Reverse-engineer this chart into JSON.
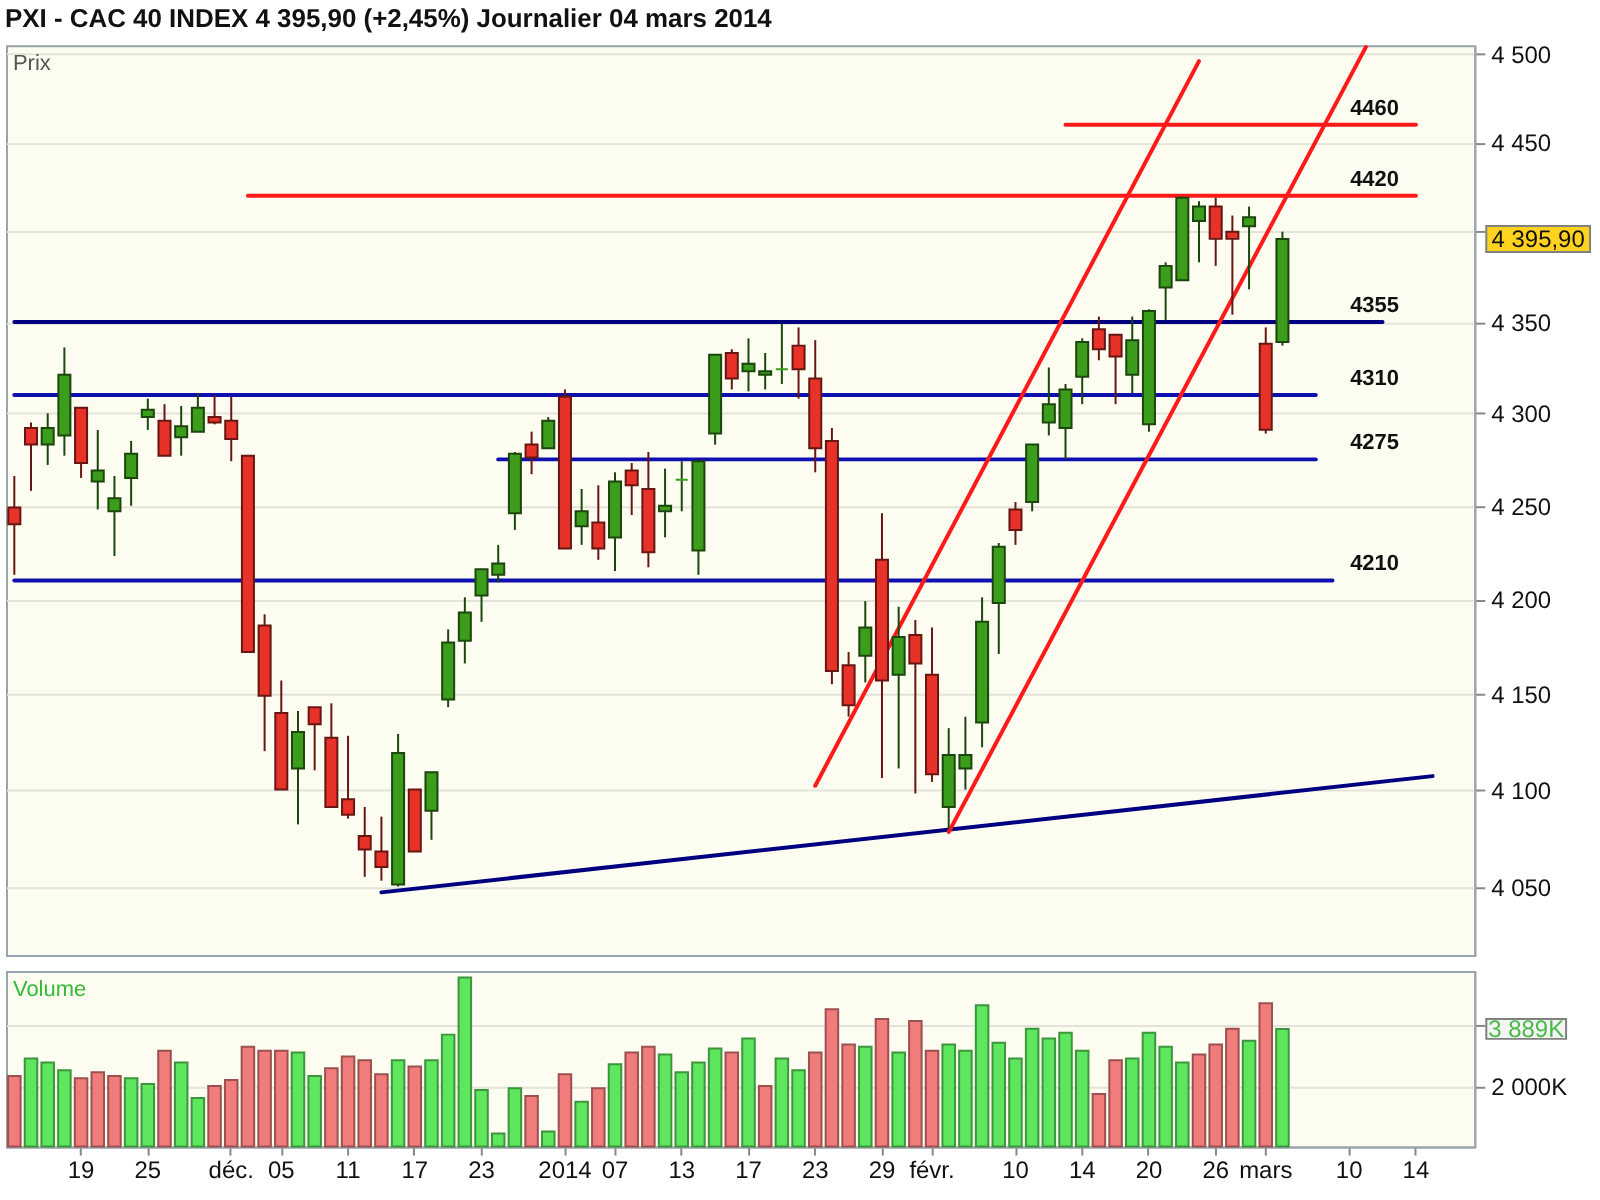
{
  "chart_data": [
    {
      "type": "candlestick",
      "title": "PXI - CAC 40 INDEX 4 395,90 (+2,45%) Journalier 04 mars 2014",
      "ylabel": "Prix",
      "categories": [
        null,
        null,
        null,
        null,
        null,
        null,
        null,
        null,
        null,
        null,
        null,
        null,
        null,
        null,
        null,
        null,
        null,
        null,
        null,
        null,
        null,
        null,
        null,
        null,
        null,
        null,
        null,
        null,
        null,
        null,
        null,
        null,
        null,
        null,
        null,
        null,
        null,
        null,
        null,
        null,
        null,
        null,
        null,
        null,
        null,
        null,
        null,
        null,
        null,
        null,
        null,
        null,
        null,
        null,
        null,
        null,
        null,
        null,
        null,
        null,
        null,
        null,
        null,
        null,
        null,
        null,
        null,
        null,
        null,
        null,
        null,
        null,
        null,
        null,
        null,
        null,
        null,
        null,
        null,
        null,
        null,
        null,
        null,
        null,
        null,
        null,
        null,
        null
      ],
      "ohlc": [
        [
          4249,
          4266,
          4213,
          4240
        ],
        [
          4292,
          4295,
          4258,
          4283
        ],
        [
          4283,
          4300,
          4272,
          4292
        ],
        [
          4288,
          4336,
          4277,
          4321
        ],
        [
          4303,
          4303,
          4265,
          4273
        ],
        [
          4263,
          4291,
          4248,
          4269
        ],
        [
          4247,
          4266,
          4223,
          4254
        ],
        [
          4265,
          4285,
          4250,
          4278
        ],
        [
          4298,
          4308,
          4291,
          4302
        ],
        [
          4296,
          4305,
          4277,
          4277
        ],
        [
          4287,
          4304,
          4277,
          4293
        ],
        [
          4290,
          4311,
          4290,
          4303
        ],
        [
          4298,
          4310,
          4294,
          4295
        ],
        [
          4296,
          4309,
          4274,
          4286
        ],
        [
          4277,
          4277,
          4172,
          4172
        ],
        [
          4186,
          4192,
          4120,
          4149
        ],
        [
          4140,
          4157,
          4100,
          4100
        ],
        [
          4111,
          4141,
          4082,
          4130
        ],
        [
          4143,
          4143,
          4110,
          4134
        ],
        [
          4127,
          4145,
          4091,
          4091
        ],
        [
          4095,
          4128,
          4085,
          4087
        ],
        [
          4076,
          4091,
          4055,
          4069
        ],
        [
          4068,
          4086,
          4053,
          4060
        ],
        [
          4051,
          4129,
          4050,
          4119
        ],
        [
          4100,
          4100,
          4068,
          4068
        ],
        [
          4089,
          4109,
          4074,
          4109
        ],
        [
          4147,
          4184,
          4143,
          4177
        ],
        [
          4178,
          4201,
          4166,
          4193
        ],
        [
          4202,
          4216,
          4188,
          4216
        ],
        [
          4213,
          4229,
          4209,
          4219
        ],
        [
          4246,
          4279,
          4237,
          4278
        ],
        [
          4283,
          4290,
          4267,
          4276
        ],
        [
          4281,
          4298,
          4281,
          4296
        ],
        [
          4309,
          4313,
          4227,
          4227
        ],
        [
          4239,
          4259,
          4229,
          4247
        ],
        [
          4241,
          4261,
          4221,
          4227
        ],
        [
          4233,
          4268,
          4215,
          4263
        ],
        [
          4269,
          4273,
          4245,
          4261
        ],
        [
          4259,
          4279,
          4217,
          4225
        ],
        [
          4247,
          4270,
          4233,
          4250
        ],
        [
          4264,
          4274,
          4247,
          4264
        ],
        [
          4226,
          4274,
          4213,
          4274
        ],
        [
          4289,
          4332,
          4283,
          4332
        ],
        [
          4333,
          4335,
          4313,
          4319
        ],
        [
          4323,
          4341,
          4312,
          4327
        ],
        [
          4321,
          4333,
          4313,
          4323
        ],
        [
          4324,
          4349,
          4316,
          4324
        ],
        [
          4337,
          4347,
          4308,
          4324
        ],
        [
          4319,
          4340,
          4268,
          4281
        ],
        [
          4285,
          4292,
          4155,
          4162
        ],
        [
          4165,
          4172,
          4138,
          4144
        ],
        [
          4170,
          4199,
          4156,
          4185
        ],
        [
          4221,
          4246,
          4106,
          4157
        ],
        [
          4160,
          4196,
          4111,
          4180
        ],
        [
          4181,
          4189,
          4098,
          4166
        ],
        [
          4160,
          4185,
          4104,
          4108
        ],
        [
          4091,
          4132,
          4080,
          4118
        ],
        [
          4111,
          4138,
          4100,
          4118
        ],
        [
          4135,
          4201,
          4122,
          4188
        ],
        [
          4198,
          4230,
          4171,
          4228
        ],
        [
          4248,
          4252,
          4229,
          4237
        ],
        [
          4252,
          4283,
          4247,
          4283
        ],
        [
          4295,
          4325,
          4288,
          4305
        ],
        [
          4292,
          4316,
          4275,
          4313
        ],
        [
          4320,
          4341,
          4305,
          4339
        ],
        [
          4346,
          4353,
          4329,
          4335
        ],
        [
          4343,
          4343,
          4305,
          4331
        ],
        [
          4321,
          4353,
          4311,
          4340
        ],
        [
          4294,
          4357,
          4290,
          4356
        ],
        [
          4369,
          4383,
          4351,
          4381
        ],
        [
          4373,
          4419,
          4373,
          4419
        ],
        [
          4406,
          4417,
          4383,
          4414
        ],
        [
          4414,
          4419,
          4381,
          4396
        ],
        [
          4400,
          4409,
          4354,
          4396
        ],
        [
          4403,
          4414,
          4368,
          4408
        ],
        [
          4338,
          4347,
          4289,
          4291
        ],
        [
          4339,
          4400,
          4337,
          4395.9
        ],
        null,
        null,
        null,
        null,
        null,
        null,
        null,
        null,
        null,
        null,
        null
      ],
      "colors": [
        "#e63228",
        "#e63228",
        "#3c9c1c",
        "#3c9c1c",
        "#e63228",
        "#3c9c1c",
        "#3c9c1c",
        "#3c9c1c",
        "#3c9c1c",
        "#e63228",
        "#3c9c1c",
        "#3c9c1c",
        "#e63228",
        "#e63228",
        "#e63228",
        "#e63228",
        "#e63228",
        "#3c9c1c",
        "#e63228",
        "#e63228",
        "#e63228",
        "#e63228",
        "#e63228",
        "#3c9c1c",
        "#e63228",
        "#3c9c1c",
        "#3c9c1c",
        "#3c9c1c",
        "#3c9c1c",
        "#3c9c1c",
        "#3c9c1c",
        "#e63228",
        "#3c9c1c",
        "#e63228",
        "#3c9c1c",
        "#e63228",
        "#3c9c1c",
        "#e63228",
        "#e63228",
        "#3c9c1c",
        "#3c9c1c",
        "#3c9c1c",
        "#3c9c1c",
        "#e63228",
        "#3c9c1c",
        "#3c9c1c",
        "#3c9c1c",
        "#e63228",
        "#e63228",
        "#e63228",
        "#e63228",
        "#3c9c1c",
        "#e63228",
        "#3c9c1c",
        "#e63228",
        "#e63228",
        "#3c9c1c",
        "#3c9c1c",
        "#3c9c1c",
        "#3c9c1c",
        "#e63228",
        "#3c9c1c",
        "#3c9c1c",
        "#3c9c1c",
        "#3c9c1c",
        "#e63228",
        "#e63228",
        "#3c9c1c",
        "#3c9c1c",
        "#3c9c1c",
        "#3c9c1c",
        "#3c9c1c",
        "#e63228",
        "#e63228",
        "#3c9c1c",
        "#e63228",
        "#3c9c1c",
        null,
        null,
        null,
        null,
        null,
        null,
        null,
        null,
        null,
        null,
        null
      ],
      "series": [
        {
          "type": "line",
          "name": "4460",
          "color": "#ff1a1a",
          "values": [
            null,
            null,
            null,
            null,
            null,
            null,
            null,
            null,
            null,
            null,
            null,
            null,
            null,
            null,
            null,
            null,
            null,
            null,
            null,
            null,
            null,
            null,
            null,
            null,
            null,
            null,
            null,
            null,
            null,
            null,
            null,
            null,
            null,
            null,
            null,
            null,
            null,
            null,
            null,
            null,
            null,
            null,
            null,
            null,
            null,
            null,
            null,
            null,
            null,
            null,
            null,
            null,
            null,
            null,
            null,
            null,
            null,
            null,
            null,
            null,
            null,
            null,
            null,
            4460,
            null,
            null,
            null,
            null,
            null,
            null,
            null,
            null,
            null,
            null,
            null,
            null,
            null,
            null,
            null,
            null,
            null,
            null,
            null,
            null,
            4460,
            null,
            null,
            null
          ]
        },
        {
          "type": "line",
          "name": "4420",
          "color": "#ff1a1a",
          "values": [
            null,
            null,
            null,
            null,
            null,
            null,
            null,
            null,
            null,
            null,
            null,
            null,
            null,
            null,
            4420,
            null,
            null,
            null,
            null,
            null,
            null,
            null,
            null,
            null,
            null,
            null,
            null,
            null,
            null,
            null,
            null,
            null,
            null,
            null,
            null,
            null,
            null,
            null,
            null,
            null,
            null,
            null,
            null,
            null,
            null,
            null,
            null,
            null,
            null,
            null,
            null,
            null,
            null,
            null,
            null,
            null,
            null,
            null,
            null,
            null,
            null,
            null,
            null,
            null,
            null,
            null,
            null,
            null,
            null,
            null,
            null,
            null,
            null,
            null,
            null,
            null,
            null,
            null,
            null,
            null,
            null,
            null,
            null,
            null,
            4420,
            null,
            null,
            null
          ]
        },
        {
          "type": "line",
          "name": "4355",
          "color": "#000080",
          "values": [
            4350,
            null,
            null,
            null,
            null,
            null,
            null,
            null,
            null,
            null,
            null,
            null,
            null,
            null,
            null,
            null,
            null,
            null,
            null,
            null,
            null,
            null,
            null,
            null,
            null,
            null,
            null,
            null,
            null,
            null,
            null,
            null,
            null,
            null,
            null,
            null,
            null,
            null,
            null,
            null,
            null,
            null,
            null,
            null,
            null,
            null,
            null,
            null,
            null,
            null,
            null,
            null,
            null,
            null,
            null,
            null,
            null,
            null,
            null,
            null,
            null,
            null,
            null,
            null,
            null,
            null,
            null,
            null,
            null,
            null,
            null,
            null,
            null,
            null,
            null,
            null,
            null,
            null,
            null,
            null,
            null,
            null,
            4350,
            null,
            null,
            null,
            null,
            null
          ]
        },
        {
          "type": "line",
          "name": "4310",
          "color": "#1010b0",
          "values": [
            4310,
            null,
            null,
            null,
            null,
            null,
            null,
            null,
            null,
            null,
            null,
            null,
            null,
            null,
            null,
            null,
            null,
            null,
            null,
            null,
            null,
            null,
            null,
            null,
            null,
            null,
            null,
            null,
            null,
            null,
            null,
            null,
            null,
            null,
            null,
            null,
            null,
            null,
            null,
            null,
            null,
            null,
            null,
            null,
            null,
            null,
            null,
            null,
            null,
            null,
            null,
            null,
            null,
            null,
            null,
            null,
            null,
            null,
            null,
            null,
            null,
            null,
            null,
            null,
            null,
            null,
            null,
            null,
            null,
            null,
            null,
            null,
            null,
            null,
            null,
            null,
            null,
            null,
            4310,
            null,
            null,
            null,
            null,
            null,
            null,
            null,
            null,
            null
          ]
        },
        {
          "type": "line",
          "name": "4275",
          "color": "#1010b0",
          "values": [
            null,
            null,
            null,
            null,
            null,
            null,
            null,
            null,
            null,
            null,
            null,
            null,
            null,
            null,
            null,
            null,
            null,
            null,
            null,
            null,
            null,
            null,
            null,
            null,
            null,
            null,
            null,
            null,
            null,
            4275,
            null,
            null,
            null,
            null,
            null,
            null,
            null,
            null,
            null,
            null,
            null,
            null,
            null,
            null,
            null,
            null,
            null,
            null,
            null,
            null,
            null,
            null,
            null,
            null,
            null,
            null,
            null,
            null,
            null,
            null,
            null,
            null,
            null,
            null,
            null,
            null,
            null,
            null,
            null,
            null,
            null,
            null,
            null,
            null,
            null,
            null,
            null,
            null,
            4275,
            null,
            null,
            null,
            null,
            null,
            null,
            null,
            null,
            null
          ]
        },
        {
          "type": "line",
          "name": "4210",
          "color": "#1010b0",
          "values": [
            4210,
            null,
            null,
            null,
            null,
            null,
            null,
            null,
            null,
            null,
            null,
            null,
            null,
            null,
            null,
            null,
            null,
            null,
            null,
            null,
            null,
            null,
            null,
            null,
            null,
            null,
            null,
            null,
            null,
            null,
            null,
            null,
            null,
            null,
            null,
            null,
            null,
            null,
            null,
            null,
            null,
            null,
            null,
            null,
            null,
            null,
            null,
            null,
            null,
            null,
            null,
            null,
            null,
            null,
            null,
            null,
            null,
            null,
            null,
            null,
            null,
            null,
            null,
            null,
            null,
            null,
            null,
            null,
            null,
            null,
            null,
            null,
            null,
            null,
            null,
            null,
            null,
            null,
            null,
            4210,
            null,
            null,
            null,
            null,
            null,
            null,
            null,
            null
          ]
        },
        {
          "type": "line",
          "color": "#000080",
          "values": [
            null,
            null,
            null,
            null,
            null,
            null,
            null,
            null,
            null,
            null,
            null,
            null,
            null,
            null,
            null,
            null,
            null,
            null,
            null,
            null,
            null,
            null,
            4047,
            null,
            null,
            null,
            null,
            null,
            null,
            null,
            null,
            null,
            null,
            null,
            null,
            null,
            null,
            null,
            null,
            null,
            null,
            null,
            null,
            null,
            null,
            null,
            null,
            null,
            null,
            null,
            null,
            null,
            null,
            null,
            null,
            null,
            null,
            null,
            null,
            null,
            null,
            null,
            null,
            null,
            null,
            null,
            null,
            null,
            null,
            null,
            null,
            null,
            null,
            null,
            null,
            null,
            null,
            null,
            null,
            null,
            null,
            null,
            null,
            null,
            null,
            4107,
            null,
            null
          ]
        },
        {
          "type": "line",
          "color": "#ff1a1a",
          "values": [
            null,
            null,
            null,
            null,
            null,
            null,
            null,
            null,
            null,
            null,
            null,
            null,
            null,
            null,
            null,
            null,
            null,
            null,
            null,
            null,
            null,
            null,
            null,
            null,
            null,
            null,
            null,
            null,
            null,
            null,
            null,
            null,
            null,
            null,
            null,
            null,
            null,
            null,
            null,
            null,
            null,
            null,
            null,
            null,
            null,
            null,
            null,
            null,
            4102,
            null,
            null,
            null,
            null,
            null,
            null,
            null,
            null,
            null,
            null,
            null,
            null,
            null,
            null,
            null,
            null,
            null,
            null,
            null,
            null,
            null,
            null,
            4496,
            null,
            null,
            null,
            null,
            null,
            null,
            null,
            null,
            null,
            null,
            null,
            null,
            null,
            null,
            null,
            null
          ]
        },
        {
          "type": "line",
          "color": "#ff1a1a",
          "values": [
            null,
            null,
            null,
            null,
            null,
            null,
            null,
            null,
            null,
            null,
            null,
            null,
            null,
            null,
            null,
            null,
            null,
            null,
            null,
            null,
            null,
            null,
            null,
            null,
            null,
            null,
            null,
            null,
            null,
            null,
            null,
            null,
            null,
            null,
            null,
            null,
            null,
            null,
            null,
            null,
            null,
            null,
            null,
            null,
            null,
            null,
            null,
            null,
            null,
            null,
            null,
            null,
            null,
            null,
            null,
            null,
            4078,
            null,
            null,
            null,
            null,
            null,
            null,
            null,
            null,
            null,
            null,
            null,
            null,
            null,
            null,
            null,
            null,
            null,
            null,
            null,
            null,
            null,
            null,
            null,
            null,
            4504,
            null,
            null,
            null,
            null,
            null,
            null
          ]
        }
      ],
      "ylim": [
        4015,
        4505
      ],
      "log": true,
      "yticks": [
        {
          "value": 4050,
          "label": "4 050"
        },
        {
          "value": 4100,
          "label": "4 100"
        },
        {
          "value": 4150,
          "label": "4 150"
        },
        {
          "value": 4200,
          "label": "4 200"
        },
        {
          "value": 4250,
          "label": "4 250"
        },
        {
          "value": 4300,
          "label": "4 300"
        },
        {
          "value": 4350,
          "label": "4 350"
        },
        {
          "value": 4400,
          "label": null
        },
        {
          "value": 4450,
          "label": "4 450"
        },
        {
          "value": 4500,
          "label": "4 500"
        }
      ],
      "grid": "y",
      "annotations": [
        "4 395,90"
      ]
    },
    {
      "type": "bar",
      "ylabel": "Volume",
      "categories": [
        null,
        null,
        null,
        null,
        "19",
        null,
        null,
        null,
        "25",
        null,
        null,
        null,
        null,
        "déc.",
        null,
        null,
        "05",
        null,
        null,
        null,
        "11",
        null,
        null,
        null,
        "17",
        null,
        null,
        null,
        "23",
        null,
        null,
        null,
        null,
        "2014",
        null,
        null,
        "07",
        null,
        null,
        null,
        "13",
        null,
        null,
        null,
        "17",
        null,
        null,
        null,
        "23",
        null,
        null,
        null,
        "29",
        null,
        null,
        "févr.",
        null,
        null,
        null,
        null,
        "10",
        null,
        null,
        null,
        "14",
        null,
        null,
        null,
        "20",
        null,
        null,
        null,
        "26",
        null,
        null,
        "mars",
        null,
        null,
        null,
        null,
        "10",
        null,
        null,
        null,
        "14",
        null,
        null,
        null
      ],
      "values": [
        2330,
        2910,
        2780,
        2520,
        2260,
        2460,
        2330,
        2260,
        2070,
        3170,
        2780,
        1610,
        2000,
        2200,
        3300,
        3170,
        3170,
        3110,
        2330,
        2590,
        2980,
        2850,
        2390,
        2850,
        2650,
        2850,
        3700,
        5590,
        1870,
        430,
        1930,
        1670,
        500,
        2390,
        1480,
        1930,
        2720,
        3110,
        3300,
        3040,
        2460,
        2780,
        3240,
        3110,
        3570,
        2000,
        2910,
        2520,
        3110,
        4540,
        3370,
        3300,
        4220,
        3110,
        4150,
        3170,
        3370,
        3170,
        4670,
        3430,
        2910,
        3890,
        3570,
        3760,
        3170,
        1740,
        2850,
        2910,
        3760,
        3300,
        2780,
        3040,
        3370,
        3890,
        3500,
        4740,
        3889,
        null,
        null,
        null,
        null,
        null,
        null,
        null,
        null,
        null,
        null,
        null
      ],
      "colors": [
        "#f07c7c",
        "#5ee65e",
        "#5ee65e",
        "#5ee65e",
        "#f07c7c",
        "#f07c7c",
        "#f07c7c",
        "#5ee65e",
        "#5ee65e",
        "#f07c7c",
        "#5ee65e",
        "#5ee65e",
        "#f07c7c",
        "#f07c7c",
        "#f07c7c",
        "#f07c7c",
        "#f07c7c",
        "#5ee65e",
        "#5ee65e",
        "#f07c7c",
        "#f07c7c",
        "#f07c7c",
        "#f07c7c",
        "#5ee65e",
        "#f07c7c",
        "#5ee65e",
        "#5ee65e",
        "#5ee65e",
        "#5ee65e",
        "#5ee65e",
        "#5ee65e",
        "#f07c7c",
        "#5ee65e",
        "#f07c7c",
        "#5ee65e",
        "#f07c7c",
        "#5ee65e",
        "#f07c7c",
        "#f07c7c",
        "#5ee65e",
        "#5ee65e",
        "#5ee65e",
        "#5ee65e",
        "#f07c7c",
        "#5ee65e",
        "#f07c7c",
        "#5ee65e",
        "#5ee65e",
        "#f07c7c",
        "#f07c7c",
        "#f07c7c",
        "#5ee65e",
        "#f07c7c",
        "#5ee65e",
        "#f07c7c",
        "#f07c7c",
        "#5ee65e",
        "#5ee65e",
        "#5ee65e",
        "#5ee65e",
        "#5ee65e",
        "#5ee65e",
        "#5ee65e",
        "#5ee65e",
        "#5ee65e",
        "#f07c7c",
        "#f07c7c",
        "#5ee65e",
        "#5ee65e",
        "#5ee65e",
        "#5ee65e",
        "#f07c7c",
        "#f07c7c",
        "#f07c7c",
        "#5ee65e",
        "#f07c7c",
        "#5ee65e",
        null,
        null,
        null,
        null,
        null,
        null,
        null,
        null,
        null,
        null,
        null
      ],
      "ylim": [
        0,
        5800
      ],
      "yticks": [
        {
          "value": 2000,
          "label": "2 000K"
        },
        {
          "value": 4000,
          "label": null
        }
      ],
      "grid": "y",
      "annotations": [
        "3 889K"
      ]
    }
  ]
}
